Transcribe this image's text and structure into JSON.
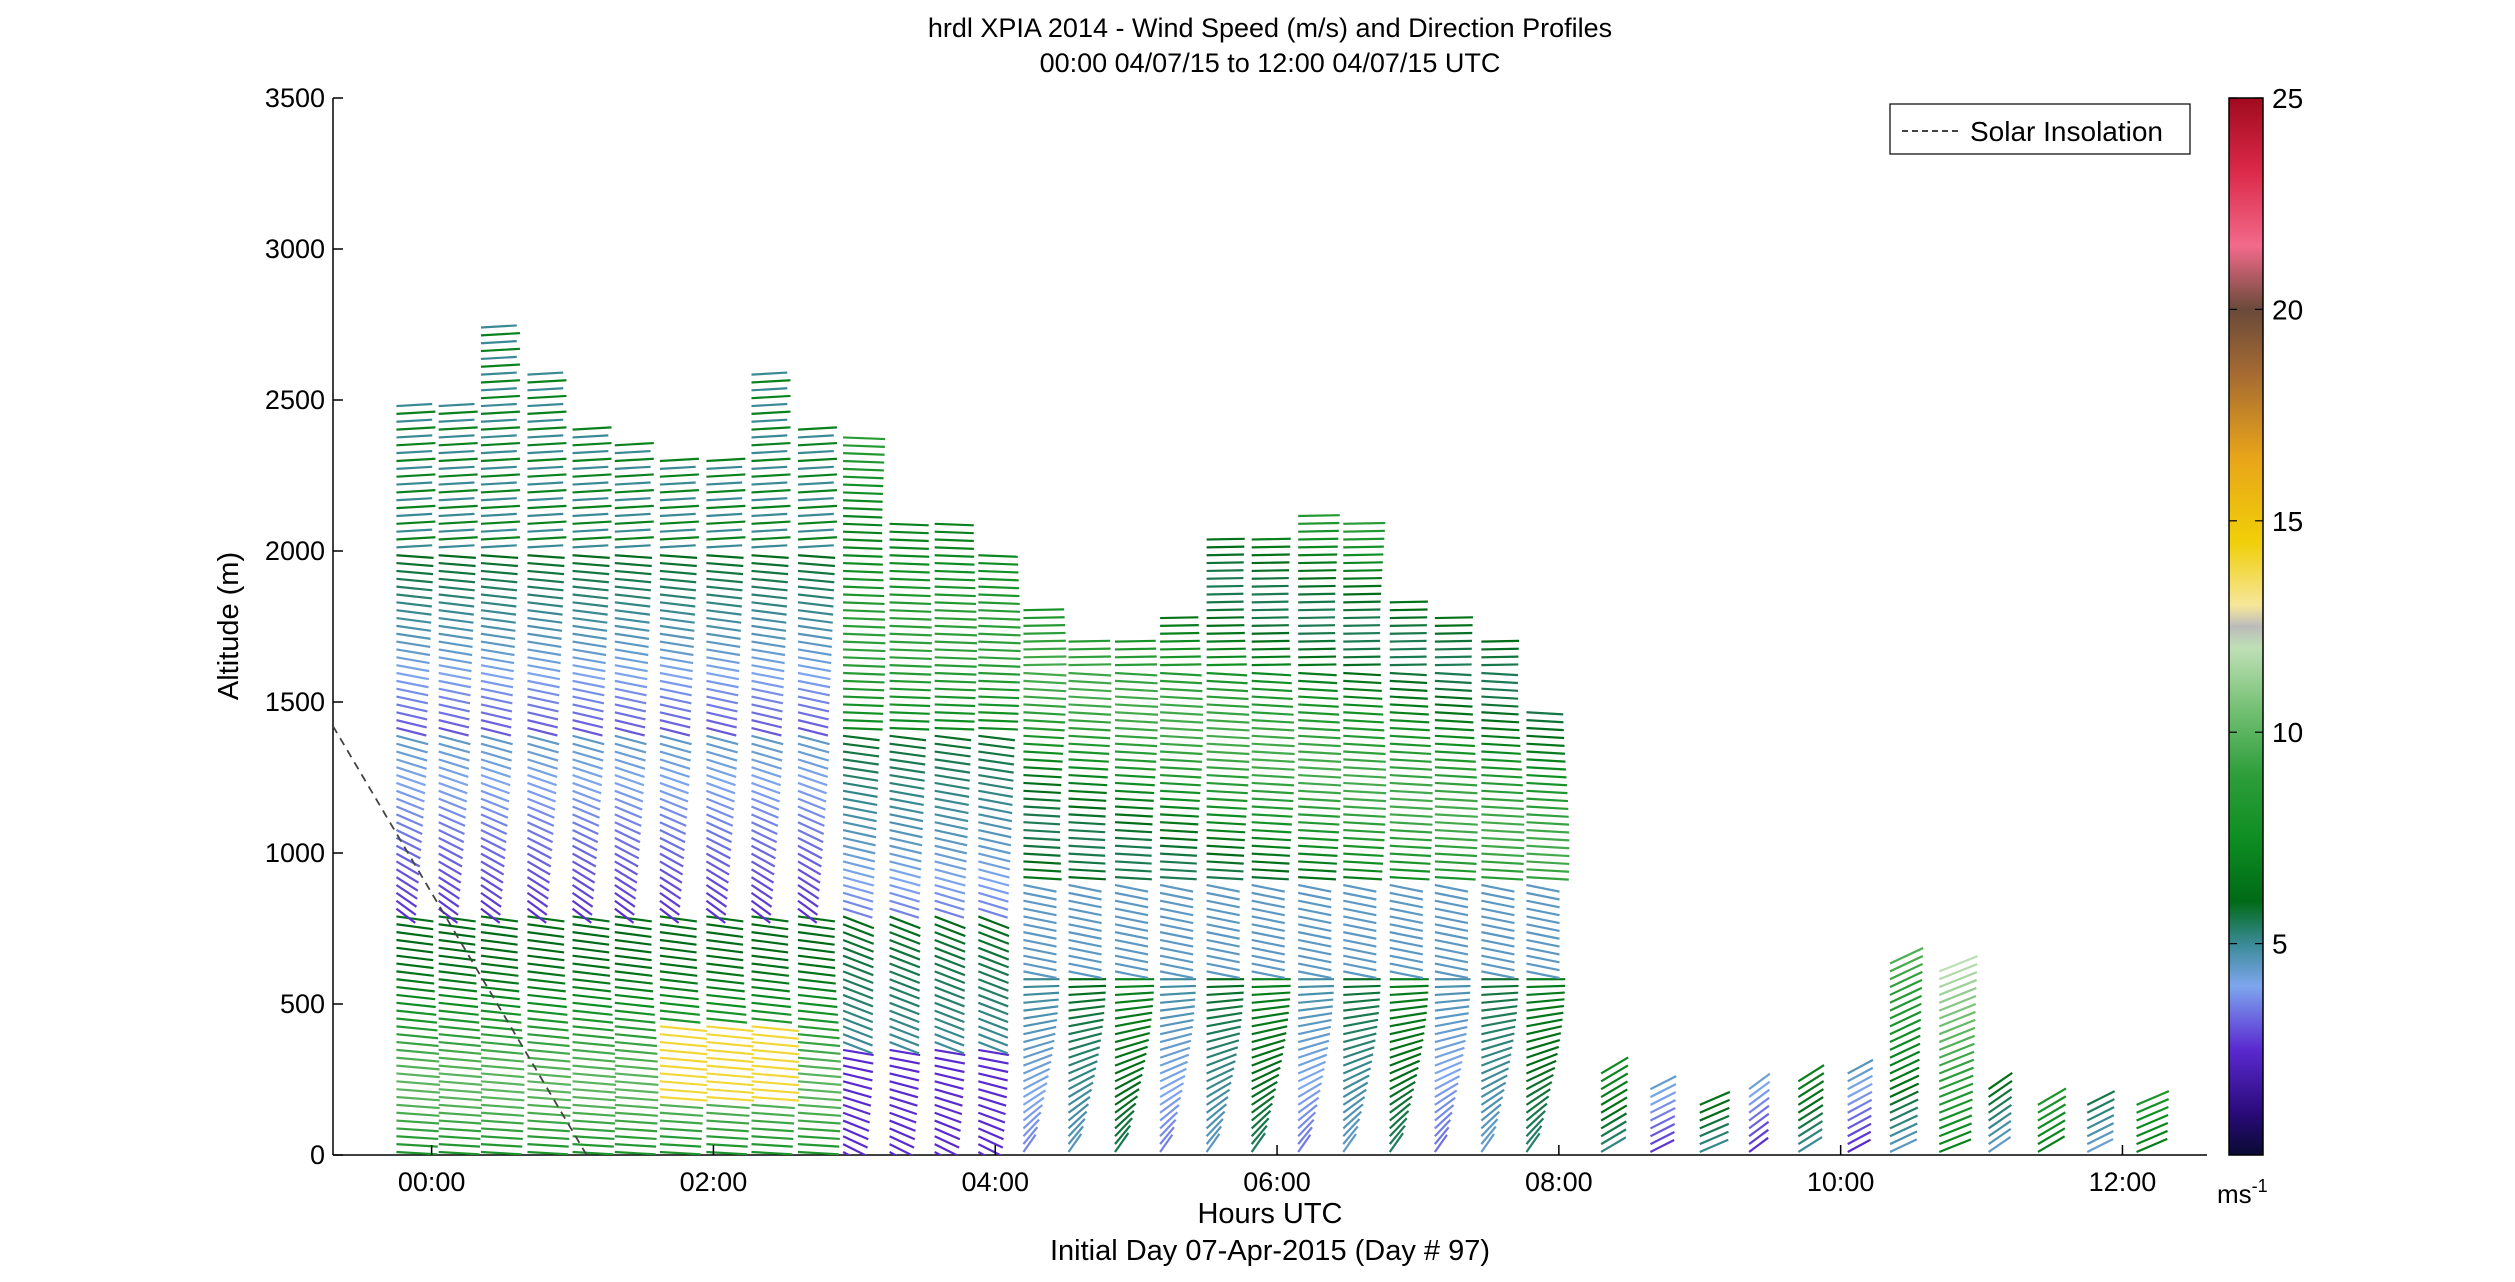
{
  "chart_data": {
    "type": "wind-barb-profile",
    "title_line1": "hrdl XPIA 2014 - Wind Speed (m/s) and Direction Profiles",
    "title_line2": "00:00 04/07/15 to 12:00 04/07/15  UTC",
    "xlabel": "Hours UTC",
    "xlabel2": "Initial Day 07-Apr-2015 (Day # 97)",
    "ylabel": "Altitude (m)",
    "xlim_hours": [
      -0.7,
      12.6
    ],
    "ylim": [
      0,
      3500
    ],
    "xticks": [
      {
        "h": 0,
        "label": "00:00"
      },
      {
        "h": 2,
        "label": "02:00"
      },
      {
        "h": 4,
        "label": "04:00"
      },
      {
        "h": 6,
        "label": "06:00"
      },
      {
        "h": 8,
        "label": "08:00"
      },
      {
        "h": 10,
        "label": "10:00"
      },
      {
        "h": 12,
        "label": "12:00"
      }
    ],
    "yticks": [
      0,
      500,
      1000,
      1500,
      2000,
      2500,
      3000,
      3500
    ],
    "legend": {
      "label": "Solar Insolation",
      "placement": "top-right",
      "style": "dashed"
    },
    "solar_insolation": [
      {
        "h": -0.7,
        "alt": 1420
      },
      {
        "h": 1.1,
        "alt": 0
      }
    ],
    "colorbar": {
      "range": [
        0,
        25
      ],
      "ticks": [
        5,
        10,
        15,
        20,
        25
      ],
      "unit_label": "ms",
      "unit_exponent": "-1"
    },
    "profiles": [
      {
        "h": -0.25,
        "top": 2500,
        "start": 0
      },
      {
        "h": 0.05,
        "top": 2480,
        "start": 0
      },
      {
        "h": 0.35,
        "top": 2740,
        "start": 0
      },
      {
        "h": 0.68,
        "top": 2590,
        "start": 0
      },
      {
        "h": 1.0,
        "top": 2410,
        "start": 0
      },
      {
        "h": 1.3,
        "top": 2360,
        "start": 0
      },
      {
        "h": 1.62,
        "top": 2300,
        "start": 0
      },
      {
        "h": 1.95,
        "top": 2310,
        "start": 0
      },
      {
        "h": 2.27,
        "top": 2600,
        "start": 0
      },
      {
        "h": 2.6,
        "top": 2410,
        "start": 0
      },
      {
        "h": 2.92,
        "top": 2400,
        "start": 0
      },
      {
        "h": 3.25,
        "top": 2100,
        "start": 0
      },
      {
        "h": 3.57,
        "top": 2090,
        "start": 0
      },
      {
        "h": 3.88,
        "top": 2000,
        "start": 0
      },
      {
        "h": 4.2,
        "top": 1820,
        "start": 0
      },
      {
        "h": 4.52,
        "top": 1700,
        "start": 0
      },
      {
        "h": 4.85,
        "top": 1700,
        "start": 0
      },
      {
        "h": 5.17,
        "top": 1780,
        "start": 0
      },
      {
        "h": 5.5,
        "top": 2040,
        "start": 0
      },
      {
        "h": 5.82,
        "top": 2060,
        "start": 0
      },
      {
        "h": 6.15,
        "top": 2130,
        "start": 0
      },
      {
        "h": 6.47,
        "top": 2110,
        "start": 0
      },
      {
        "h": 6.8,
        "top": 1830,
        "start": 0
      },
      {
        "h": 7.12,
        "top": 1780,
        "start": 0
      },
      {
        "h": 7.45,
        "top": 1700,
        "start": 0
      },
      {
        "h": 7.77,
        "top": 1480,
        "start": 0
      },
      {
        "h": 8.3,
        "top": 290,
        "start": 0
      },
      {
        "h": 8.65,
        "top": 230,
        "start": 0
      },
      {
        "h": 9.0,
        "top": 190,
        "start": 0
      },
      {
        "h": 9.35,
        "top": 230,
        "start": 0
      },
      {
        "h": 9.7,
        "top": 250,
        "start": 0
      },
      {
        "h": 10.05,
        "top": 290,
        "start": 0
      },
      {
        "h": 10.35,
        "top": 640,
        "start": 0
      },
      {
        "h": 10.7,
        "top": 620,
        "start": 0
      },
      {
        "h": 11.05,
        "top": 230,
        "start": 0
      },
      {
        "h": 11.4,
        "top": 190,
        "start": 0
      },
      {
        "h": 11.75,
        "top": 180,
        "start": 0
      },
      {
        "h": 12.1,
        "top": 170,
        "start": 0
      }
    ]
  }
}
